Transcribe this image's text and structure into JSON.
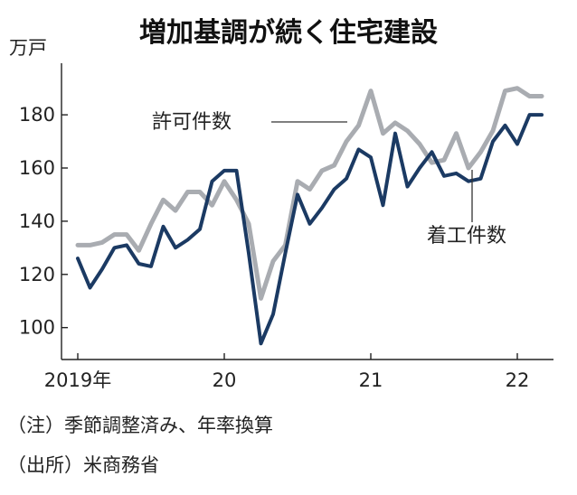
{
  "chart_data": {
    "type": "line",
    "title": "増加基調が続く住宅建設",
    "unit": "万戸",
    "ylim": [
      88,
      196
    ],
    "yticks": [
      100,
      120,
      140,
      160,
      180
    ],
    "xtick_labels": [
      "2019年",
      "20",
      "21",
      "22"
    ],
    "xtick_index": [
      0,
      12,
      24,
      36
    ],
    "grid": false,
    "series": [
      {
        "name": "許可件数",
        "color": "#a9acb1",
        "values": [
          131,
          131,
          132,
          135,
          135,
          129,
          139,
          148,
          144,
          151,
          151,
          146,
          155,
          148,
          139,
          111,
          125,
          131,
          155,
          152,
          159,
          161,
          170,
          176,
          189,
          173,
          177,
          174,
          169,
          162,
          163,
          173,
          160,
          166,
          174,
          189,
          190,
          187,
          187
        ]
      },
      {
        "name": "着工件数",
        "color": "#1b3a63",
        "values": [
          126,
          115,
          122,
          130,
          131,
          124,
          123,
          138,
          130,
          133,
          137,
          155,
          159,
          159,
          128,
          94,
          105,
          128,
          150,
          139,
          145,
          152,
          156,
          167,
          164,
          146,
          173,
          153,
          160,
          166,
          157,
          158,
          155,
          156,
          170,
          176,
          169,
          180,
          180
        ]
      }
    ]
  },
  "notes": {
    "line1": "（注）季節調整済み、年率換算",
    "line2": "（出所）米商務省"
  }
}
